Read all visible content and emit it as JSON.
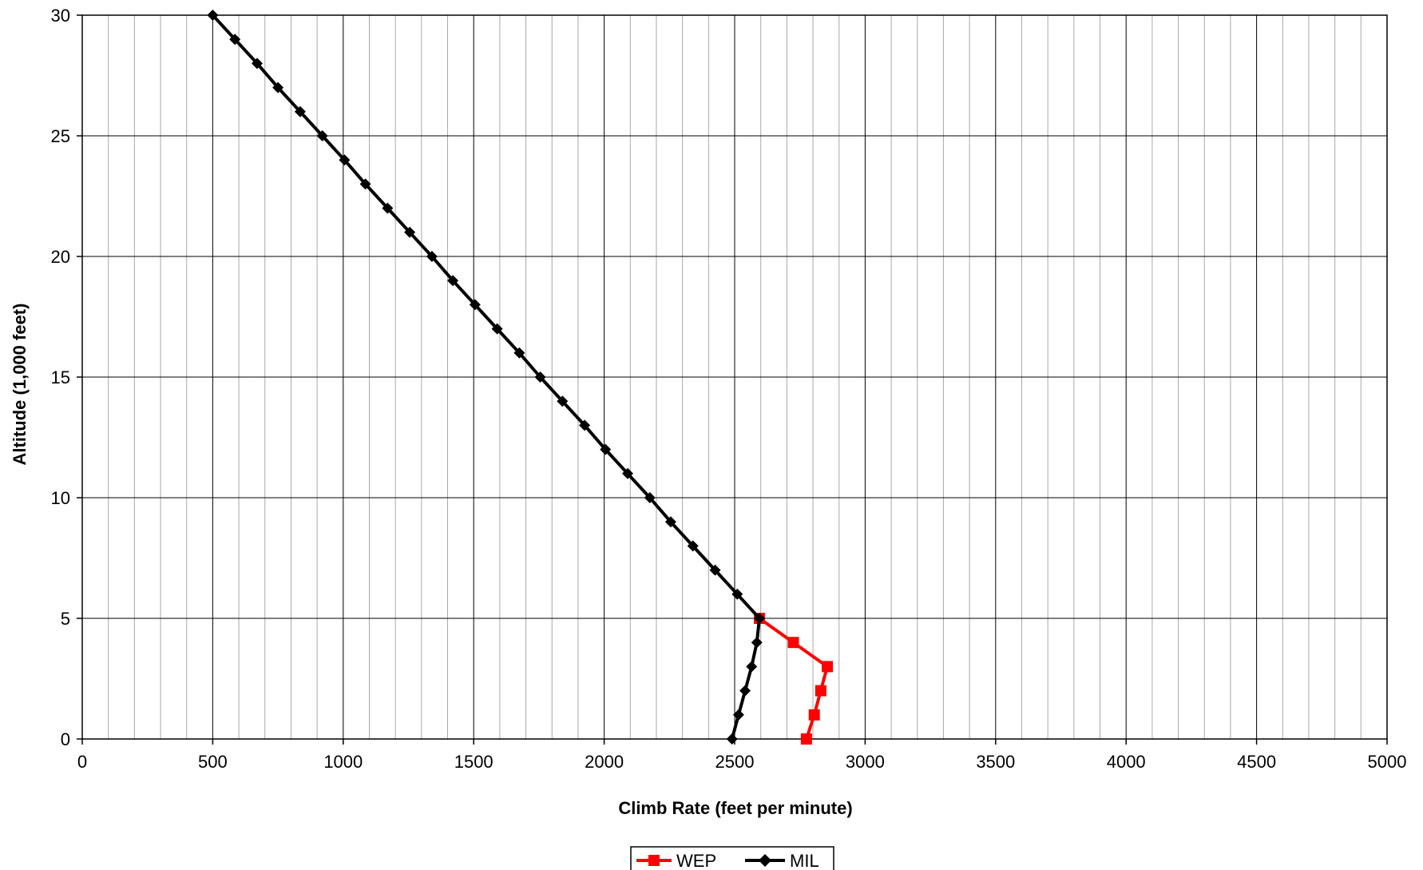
{
  "chart_data": {
    "type": "line",
    "title": "",
    "xlabel": "Climb Rate (feet per minute)",
    "ylabel": "Altitude (1,000 feet)",
    "xlim": [
      0,
      5000
    ],
    "ylim": [
      0,
      30
    ],
    "x_major_ticks": [
      0,
      500,
      1000,
      1500,
      2000,
      2500,
      3000,
      3500,
      4000,
      4500,
      5000
    ],
    "x_minor_step": 100,
    "y_major_ticks": [
      0,
      5,
      10,
      15,
      20,
      25,
      30
    ],
    "grid": true,
    "legend_placement": "bottom-center",
    "series": [
      {
        "name": "WEP",
        "color": "#ff0000",
        "marker": "square",
        "points": [
          {
            "x": 2775,
            "y": 0
          },
          {
            "x": 2805,
            "y": 1
          },
          {
            "x": 2830,
            "y": 2
          },
          {
            "x": 2855,
            "y": 3
          },
          {
            "x": 2725,
            "y": 4
          },
          {
            "x": 2595,
            "y": 5
          }
        ]
      },
      {
        "name": "MIL",
        "color": "#000000",
        "marker": "diamond",
        "points": [
          {
            "x": 2490,
            "y": 0
          },
          {
            "x": 2515,
            "y": 1
          },
          {
            "x": 2540,
            "y": 2
          },
          {
            "x": 2565,
            "y": 3
          },
          {
            "x": 2585,
            "y": 4
          },
          {
            "x": 2595,
            "y": 5
          },
          {
            "x": 2510,
            "y": 6
          },
          {
            "x": 2425,
            "y": 7
          },
          {
            "x": 2340,
            "y": 8
          },
          {
            "x": 2255,
            "y": 9
          },
          {
            "x": 2175,
            "y": 10
          },
          {
            "x": 2090,
            "y": 11
          },
          {
            "x": 2005,
            "y": 12
          },
          {
            "x": 1925,
            "y": 13
          },
          {
            "x": 1840,
            "y": 14
          },
          {
            "x": 1755,
            "y": 15
          },
          {
            "x": 1675,
            "y": 16
          },
          {
            "x": 1590,
            "y": 17
          },
          {
            "x": 1505,
            "y": 18
          },
          {
            "x": 1420,
            "y": 19
          },
          {
            "x": 1340,
            "y": 20
          },
          {
            "x": 1255,
            "y": 21
          },
          {
            "x": 1170,
            "y": 22
          },
          {
            "x": 1085,
            "y": 23
          },
          {
            "x": 1005,
            "y": 24
          },
          {
            "x": 920,
            "y": 25
          },
          {
            "x": 835,
            "y": 26
          },
          {
            "x": 750,
            "y": 27
          },
          {
            "x": 670,
            "y": 28
          },
          {
            "x": 585,
            "y": 29
          },
          {
            "x": 500,
            "y": 30
          }
        ]
      }
    ]
  }
}
